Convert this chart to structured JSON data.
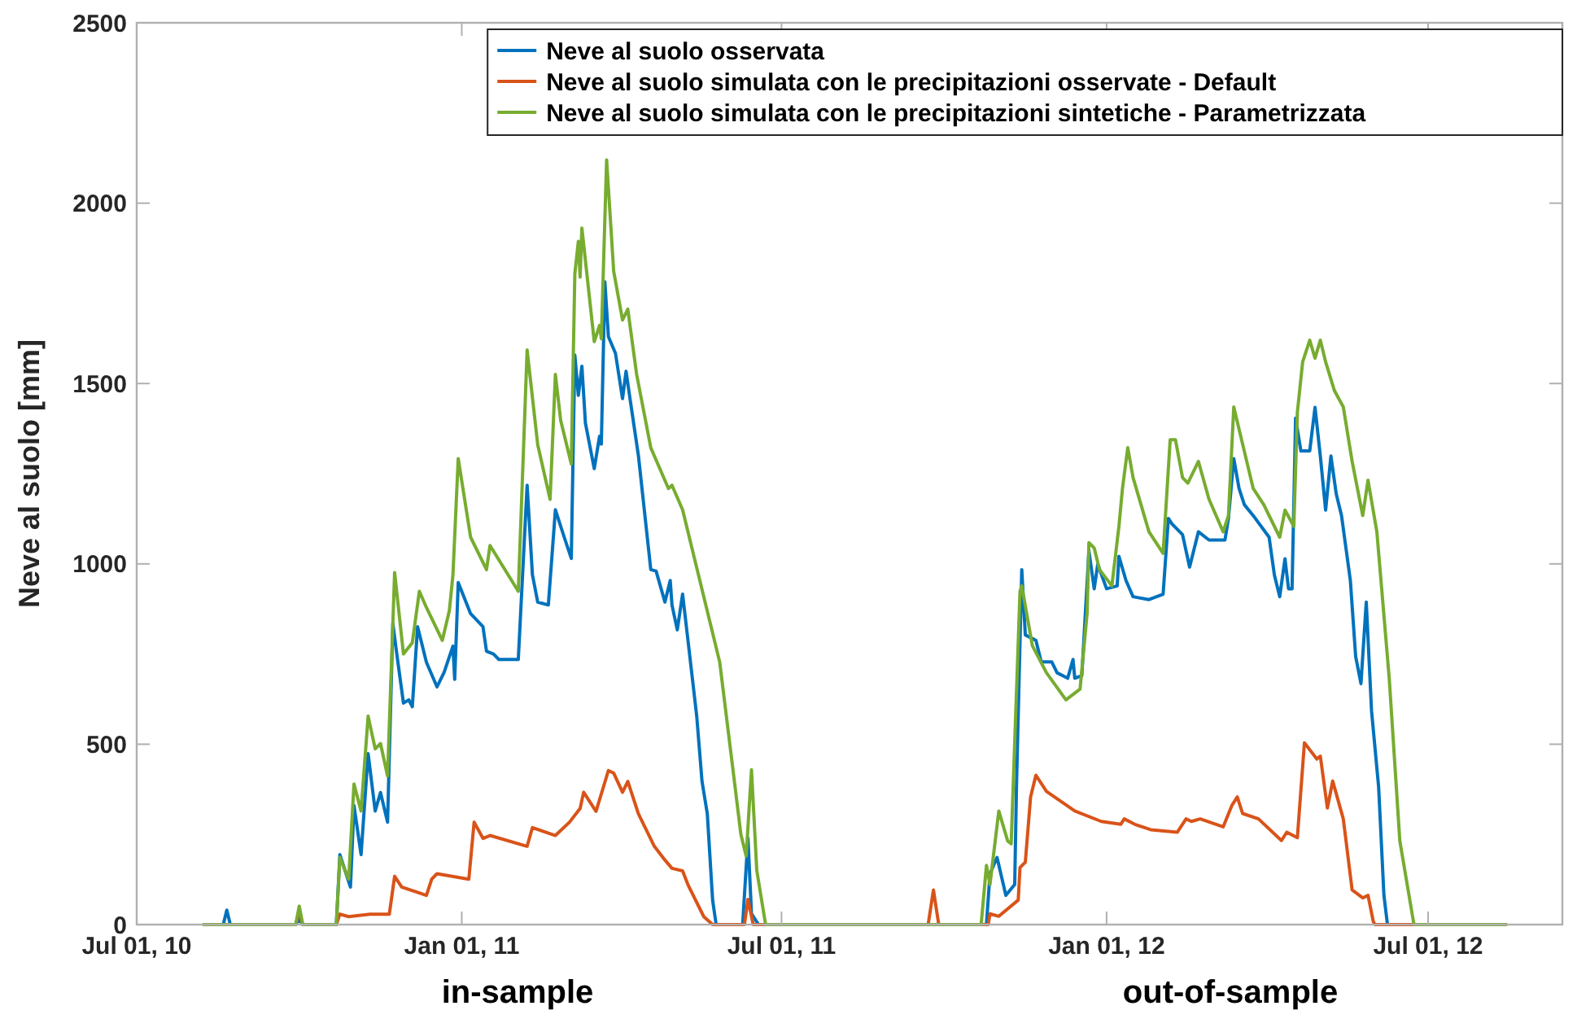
{
  "chart_data": {
    "type": "line",
    "ylabel": "Neve al suolo [mm]",
    "xlim": [
      "2010-07-01",
      "2012-09-15"
    ],
    "xticks": [
      {
        "value": "2010-07-01",
        "label": "Jul 01, 10"
      },
      {
        "value": "2011-01-01",
        "label": "Jan 01, 11"
      },
      {
        "value": "2011-07-01",
        "label": "Jul 01, 11"
      },
      {
        "value": "2012-01-01",
        "label": "Jan 01, 12"
      },
      {
        "value": "2012-07-01",
        "label": "Jul 01, 12"
      }
    ],
    "ylim": [
      0,
      2500
    ],
    "yticks": [
      0,
      500,
      1000,
      1500,
      2000,
      2500
    ],
    "grid": false,
    "legend": "top right",
    "annotations": [
      "in-sample",
      "out-of-sample"
    ],
    "series": [
      {
        "name": "Neve al suolo osservata",
        "color": "#0072bd",
        "x": [
          "2010-08-08",
          "2010-08-19",
          "2010-08-21",
          "2010-08-23",
          "2010-09-29",
          "2010-10-01",
          "2010-10-03",
          "2010-10-22",
          "2010-10-24",
          "2010-10-30",
          "2010-11-01",
          "2010-11-05",
          "2010-11-09",
          "2010-11-13",
          "2010-11-16",
          "2010-11-20",
          "2010-11-23",
          "2010-11-25",
          "2010-11-29",
          "2010-12-02",
          "2010-12-04",
          "2010-12-07",
          "2010-12-12",
          "2010-12-18",
          "2010-12-22",
          "2010-12-27",
          "2010-12-28",
          "2010-12-30",
          "2011-01-06",
          "2011-01-13",
          "2011-01-15",
          "2011-01-19",
          "2011-01-22",
          "2011-02-02",
          "2011-02-07",
          "2011-02-10",
          "2011-02-13",
          "2011-02-19",
          "2011-02-23",
          "2011-02-28",
          "2011-03-04",
          "2011-03-06",
          "2011-03-08",
          "2011-03-10",
          "2011-03-12",
          "2011-03-17",
          "2011-03-20",
          "2011-03-21",
          "2011-03-23",
          "2011-03-25",
          "2011-03-29",
          "2011-04-02",
          "2011-04-04",
          "2011-04-06",
          "2011-04-11",
          "2011-04-18",
          "2011-04-21",
          "2011-04-26",
          "2011-04-29",
          "2011-04-30",
          "2011-05-03",
          "2011-05-06",
          "2011-05-09",
          "2011-05-14",
          "2011-05-17",
          "2011-05-20",
          "2011-05-23",
          "2011-05-25",
          "2011-06-09",
          "2011-06-12",
          "2011-06-14",
          "2011-06-18",
          "2011-10-25",
          "2011-10-27",
          "2011-10-31",
          "2011-11-05",
          "2011-11-10",
          "2011-11-11",
          "2011-11-14",
          "2011-11-16",
          "2011-11-22",
          "2011-11-25",
          "2011-12-01",
          "2011-12-04",
          "2011-12-10",
          "2011-12-13",
          "2011-12-14",
          "2011-12-18",
          "2011-12-22",
          "2011-12-25",
          "2011-12-27",
          "2012-01-01",
          "2012-01-07",
          "2012-01-08",
          "2012-01-12",
          "2012-01-16",
          "2012-01-25",
          "2012-02-02",
          "2012-02-05",
          "2012-02-07",
          "2012-02-13",
          "2012-02-17",
          "2012-02-22",
          "2012-02-28",
          "2012-03-08",
          "2012-03-10",
          "2012-03-13",
          "2012-03-16",
          "2012-03-19",
          "2012-03-24",
          "2012-04-02",
          "2012-04-05",
          "2012-04-08",
          "2012-04-11",
          "2012-04-13",
          "2012-04-15",
          "2012-04-17",
          "2012-04-20",
          "2012-04-25",
          "2012-04-28",
          "2012-05-01",
          "2012-05-04",
          "2012-05-07",
          "2012-05-10",
          "2012-05-13",
          "2012-05-18",
          "2012-05-21",
          "2012-05-24",
          "2012-05-27",
          "2012-05-30",
          "2012-06-03",
          "2012-06-06",
          "2012-06-08",
          "2012-08-14"
        ],
        "values": [
          0,
          0,
          40,
          0,
          0,
          15,
          0,
          0,
          194,
          104,
          330,
          194,
          474,
          315,
          366,
          284,
          835,
          758,
          614,
          623,
          604,
          826,
          727,
          659,
          699,
          772,
          680,
          948,
          862,
          826,
          758,
          750,
          735,
          735,
          1218,
          970,
          894,
          886,
          1150,
          1074,
          1015,
          1579,
          1467,
          1548,
          1390,
          1264,
          1354,
          1332,
          1782,
          1630,
          1584,
          1458,
          1534,
          1466,
          1300,
          984,
          980,
          894,
          954,
          886,
          817,
          916,
          790,
          578,
          397,
          307,
          68,
          0,
          0,
          240,
          30,
          0,
          0,
          141,
          186,
          81,
          111,
          382,
          984,
          803,
          788,
          728,
          728,
          698,
          683,
          735,
          683,
          690,
          1036,
          931,
          999,
          931,
          939,
          1021,
          954,
          909,
          901,
          916,
          1126,
          1111,
          1081,
          991,
          1089,
          1066,
          1066,
          1126,
          1292,
          1209,
          1164,
          1134,
          1074,
          969,
          909,
          1014,
          931,
          931,
          1404,
          1313,
          1313,
          1434,
          1299,
          1149,
          1299,
          1194,
          1134,
          954,
          743,
          668,
          894,
          592,
          382,
          81,
          0,
          0
        ]
      },
      {
        "name": "Neve al suolo simulata con le precipitazioni osservate - Default",
        "color": "#d95319",
        "x": [
          "2010-08-08",
          "2010-09-29",
          "2010-10-01",
          "2010-10-03",
          "2010-10-22",
          "2010-10-24",
          "2010-10-29",
          "2010-11-10",
          "2010-11-21",
          "2010-11-24",
          "2010-11-28",
          "2010-12-12",
          "2010-12-15",
          "2010-12-18",
          "2011-01-05",
          "2011-01-08",
          "2011-01-13",
          "2011-01-17",
          "2011-02-07",
          "2011-02-10",
          "2011-02-23",
          "2011-03-03",
          "2011-03-09",
          "2011-03-11",
          "2011-03-18",
          "2011-03-25",
          "2011-03-28",
          "2011-04-02",
          "2011-04-05",
          "2011-04-11",
          "2011-04-20",
          "2011-04-26",
          "2011-04-30",
          "2011-05-06",
          "2011-05-09",
          "2011-05-18",
          "2011-05-23",
          "2011-06-10",
          "2011-06-12",
          "2011-06-15",
          "2011-09-22",
          "2011-09-25",
          "2011-09-28",
          "2011-10-26",
          "2011-10-27",
          "2011-11-01",
          "2011-11-12",
          "2011-11-13",
          "2011-11-16",
          "2011-11-19",
          "2011-11-22",
          "2011-11-28",
          "2011-12-14",
          "2011-12-29",
          "2012-01-09",
          "2012-01-11",
          "2012-01-17",
          "2012-01-26",
          "2012-02-10",
          "2012-02-15",
          "2012-02-18",
          "2012-02-23",
          "2012-03-07",
          "2012-03-12",
          "2012-03-15",
          "2012-03-18",
          "2012-03-27",
          "2012-04-09",
          "2012-04-12",
          "2012-04-18",
          "2012-04-22",
          "2012-04-29",
          "2012-05-01",
          "2012-05-05",
          "2012-05-08",
          "2012-05-14",
          "2012-05-19",
          "2012-05-25",
          "2012-05-28",
          "2012-05-31",
          "2012-06-01",
          "2012-08-14"
        ],
        "values": [
          0,
          0,
          36,
          0,
          0,
          29,
          22,
          29,
          29,
          134,
          104,
          81,
          126,
          141,
          126,
          284,
          239,
          247,
          217,
          269,
          247,
          284,
          322,
          367,
          314,
          427,
          420,
          367,
          397,
          307,
          217,
          179,
          156,
          149,
          111,
          22,
          0,
          0,
          70,
          0,
          0,
          96,
          0,
          0,
          30,
          23,
          68,
          158,
          173,
          354,
          414,
          369,
          315,
          286,
          278,
          293,
          278,
          263,
          256,
          293,
          286,
          293,
          271,
          331,
          354,
          308,
          293,
          233,
          256,
          241,
          504,
          459,
          467,
          323,
          398,
          293,
          96,
          74,
          81,
          8,
          0,
          0
        ]
      },
      {
        "name": "Neve al suolo simulata con le precipitazioni sintetiche - Parametrizzata",
        "color": "#77ac30",
        "x": [
          "2010-08-08",
          "2010-09-29",
          "2010-10-01",
          "2010-10-03",
          "2010-10-22",
          "2010-10-24",
          "2010-10-29",
          "2010-11-01",
          "2010-11-05",
          "2010-11-09",
          "2010-11-13",
          "2010-11-16",
          "2010-11-20",
          "2010-11-24",
          "2010-11-29",
          "2010-12-04",
          "2010-12-08",
          "2010-12-12",
          "2010-12-21",
          "2010-12-25",
          "2010-12-27",
          "2010-12-30",
          "2011-01-06",
          "2011-01-15",
          "2011-01-17",
          "2011-02-02",
          "2011-02-07",
          "2011-02-13",
          "2011-02-20",
          "2011-02-23",
          "2011-02-26",
          "2011-03-04",
          "2011-03-06",
          "2011-03-08",
          "2011-03-09",
          "2011-03-10",
          "2011-03-17",
          "2011-03-20",
          "2011-03-21",
          "2011-03-24",
          "2011-03-28",
          "2011-04-02",
          "2011-04-05",
          "2011-04-10",
          "2011-04-18",
          "2011-04-28",
          "2011-04-30",
          "2011-05-06",
          "2011-05-27",
          "2011-06-03",
          "2011-06-08",
          "2011-06-11",
          "2011-06-14",
          "2011-06-17",
          "2011-06-22",
          "2011-10-22",
          "2011-10-25",
          "2011-10-27",
          "2011-11-01",
          "2011-11-06",
          "2011-11-08",
          "2011-11-13",
          "2011-11-14",
          "2011-11-20",
          "2011-11-28",
          "2011-12-09",
          "2011-12-17",
          "2011-12-21",
          "2011-12-22",
          "2011-12-25",
          "2011-12-28",
          "2012-01-04",
          "2012-01-08",
          "2012-01-10",
          "2012-01-13",
          "2012-01-16",
          "2012-01-25",
          "2012-02-02",
          "2012-02-06",
          "2012-02-09",
          "2012-02-13",
          "2012-02-16",
          "2012-02-22",
          "2012-02-28",
          "2012-03-07",
          "2012-03-10",
          "2012-03-13",
          "2012-03-24",
          "2012-03-30",
          "2012-04-08",
          "2012-04-11",
          "2012-04-16",
          "2012-04-18",
          "2012-04-21",
          "2012-04-25",
          "2012-04-28",
          "2012-05-01",
          "2012-05-04",
          "2012-05-09",
          "2012-05-14",
          "2012-05-19",
          "2012-05-25",
          "2012-05-28",
          "2012-06-02",
          "2012-06-09",
          "2012-06-15",
          "2012-06-23",
          "2012-08-14"
        ],
        "values": [
          0,
          0,
          51,
          0,
          0,
          186,
          126,
          390,
          315,
          578,
          487,
          502,
          412,
          976,
          750,
          781,
          924,
          879,
          788,
          871,
          969,
          1292,
          1074,
          984,
          1051,
          924,
          1593,
          1330,
          1179,
          1525,
          1398,
          1277,
          1804,
          1894,
          1795,
          1931,
          1616,
          1661,
          1624,
          2120,
          1811,
          1676,
          1706,
          1525,
          1322,
          1209,
          1218,
          1150,
          728,
          450,
          250,
          190,
          429,
          150,
          0,
          0,
          164,
          111,
          315,
          232,
          224,
          924,
          939,
          773,
          698,
          623,
          653,
          864,
          1059,
          1044,
          984,
          939,
          1104,
          1209,
          1322,
          1239,
          1089,
          1029,
          1344,
          1344,
          1239,
          1224,
          1284,
          1179,
          1089,
          1134,
          1435,
          1209,
          1164,
          1074,
          1149,
          1104,
          1420,
          1560,
          1620,
          1570,
          1620,
          1560,
          1480,
          1435,
          1284,
          1134,
          1232,
          1089,
          683,
          232,
          0,
          0
        ]
      }
    ]
  }
}
